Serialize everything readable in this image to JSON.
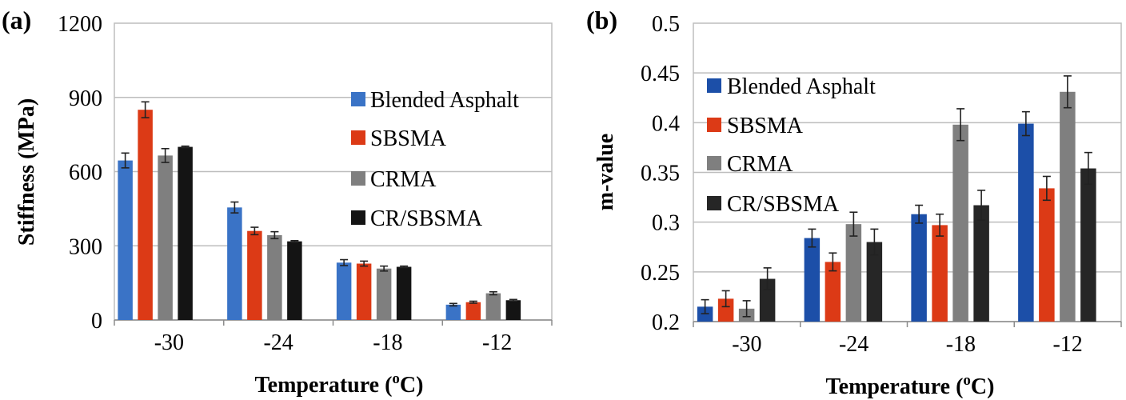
{
  "chart_data": [
    {
      "type": "bar",
      "panel_label": "(a)",
      "categories": [
        "-30",
        "-24",
        "-18",
        "-12"
      ],
      "xlabel": "Temperature (",
      "xlabel_sup": "o",
      "xlabel_end": "C)",
      "ylabel": "Stiffness (MPa)",
      "ylim": [
        0,
        1200
      ],
      "yticks": [
        0,
        300,
        600,
        900,
        1200
      ],
      "ytick_labels": [
        "0",
        "300",
        "600",
        "900",
        "1200"
      ],
      "grid": true,
      "legend_position": "top-right",
      "series": [
        {
          "name": "Blended Asphalt",
          "color": "#3a73c6",
          "values": [
            645,
            455,
            232,
            62
          ],
          "errors": [
            30,
            22,
            12,
            5
          ]
        },
        {
          "name": "SBSMA",
          "color": "#dc3a16",
          "values": [
            850,
            360,
            228,
            72
          ],
          "errors": [
            32,
            15,
            10,
            4
          ]
        },
        {
          "name": "CRMA",
          "color": "#7f7f7f",
          "values": [
            665,
            343,
            208,
            108
          ],
          "errors": [
            28,
            14,
            10,
            6
          ]
        },
        {
          "name": "CR/SBSMA",
          "color": "#141414",
          "values": [
            700,
            318,
            215,
            80
          ],
          "errors": [
            3,
            3,
            3,
            3
          ]
        }
      ]
    },
    {
      "type": "bar",
      "panel_label": "(b)",
      "categories": [
        "-30",
        "-24",
        "-18",
        "-12"
      ],
      "xlabel": "Temperature (",
      "xlabel_sup": "o",
      "xlabel_end": "C)",
      "ylabel": "m-value",
      "ylim": [
        0.2,
        0.5
      ],
      "yticks": [
        0.2,
        0.25,
        0.3,
        0.35,
        0.4,
        0.45,
        0.5
      ],
      "ytick_labels": [
        "0.2",
        "0.25",
        "0.3",
        "0.35",
        "0.4",
        "0.45",
        "0.5"
      ],
      "grid": true,
      "legend_position": "top-left",
      "series": [
        {
          "name": "Blended Asphalt",
          "color": "#1c4fa8",
          "values": [
            0.215,
            0.284,
            0.308,
            0.399
          ],
          "errors": [
            0.007,
            0.009,
            0.009,
            0.012
          ]
        },
        {
          "name": "SBSMA",
          "color": "#dc3a16",
          "values": [
            0.223,
            0.26,
            0.297,
            0.334
          ],
          "errors": [
            0.008,
            0.009,
            0.011,
            0.012
          ]
        },
        {
          "name": "CRMA",
          "color": "#7f7f7f",
          "values": [
            0.213,
            0.298,
            0.398,
            0.431
          ],
          "errors": [
            0.008,
            0.012,
            0.016,
            0.016
          ]
        },
        {
          "name": "CR/SBSMA",
          "color": "#262626",
          "values": [
            0.243,
            0.28,
            0.317,
            0.354
          ],
          "errors": [
            0.011,
            0.013,
            0.015,
            0.016
          ]
        }
      ]
    }
  ]
}
